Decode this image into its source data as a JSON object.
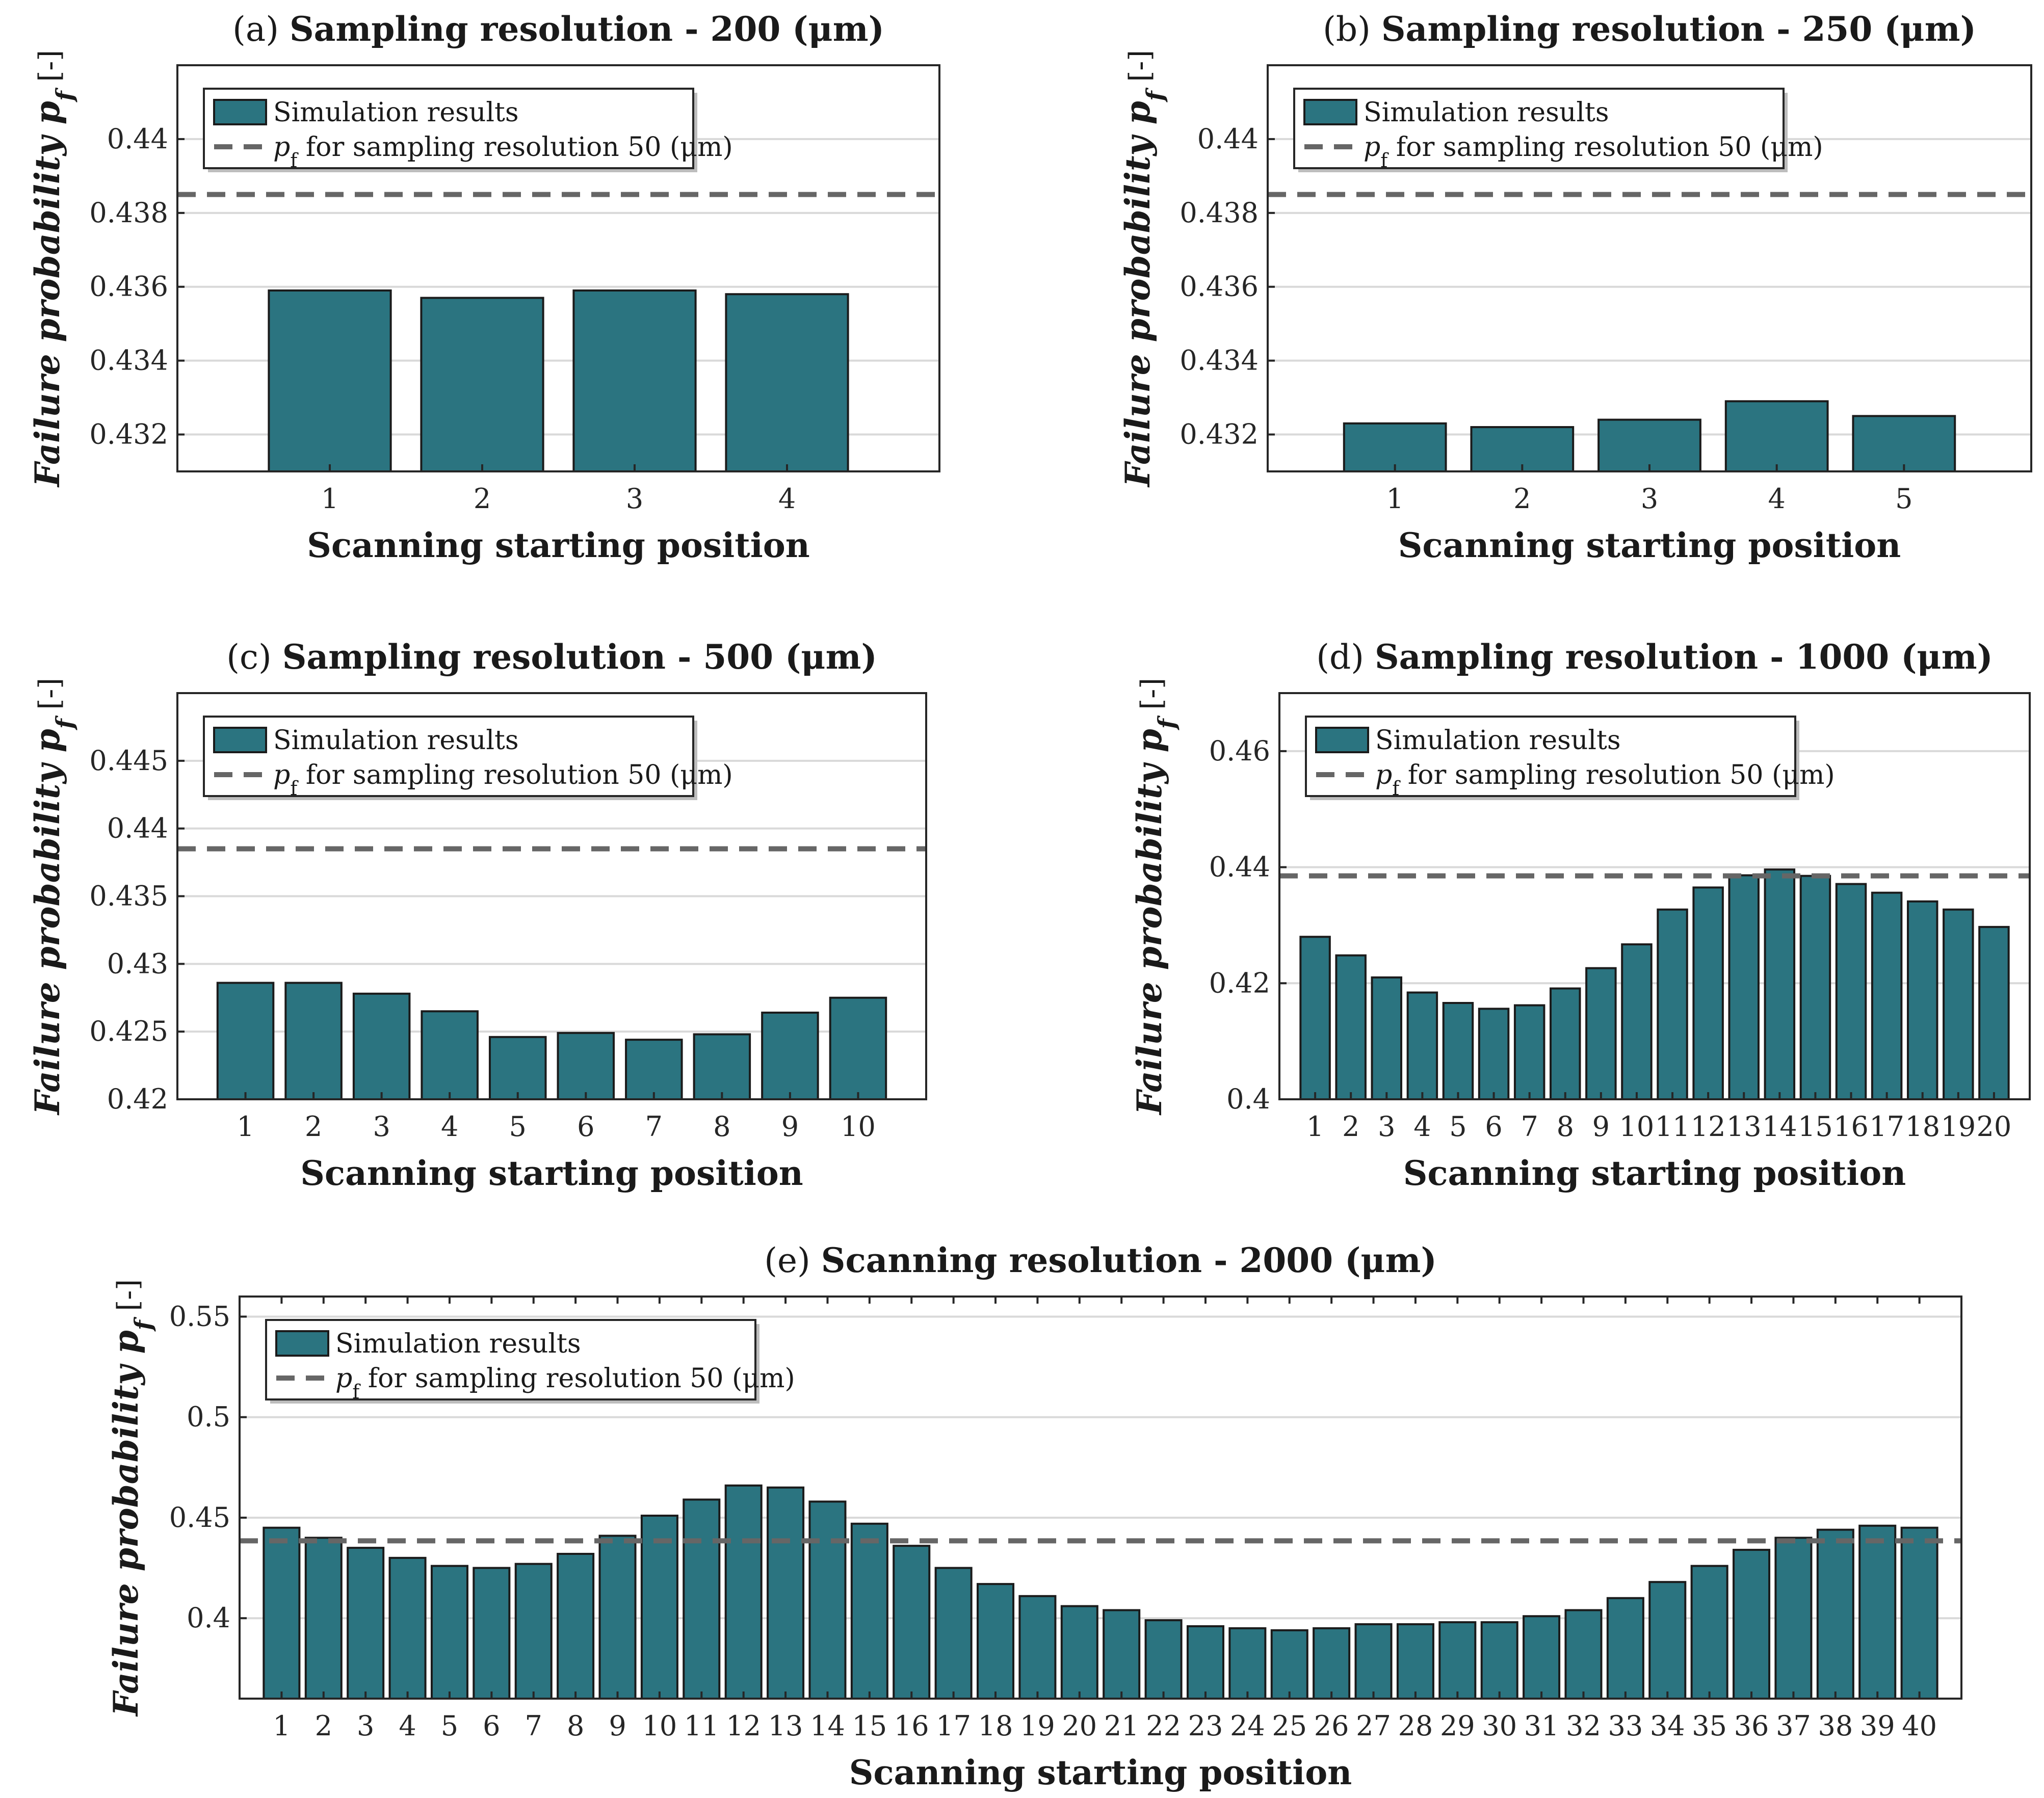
{
  "chart_data": [
    {
      "type": "bar",
      "panel": "a",
      "title_prefix": "(a)",
      "title_bold": "Sampling resolution - 200",
      "title_unit": "(μm)",
      "xlabel": "Scanning starting position",
      "ylabel": "Failure probability p",
      "ylabel_sub": "f",
      "ylabel_unit": "[-]",
      "categories": [
        "1",
        "2",
        "3",
        "4"
      ],
      "series": [
        {
          "name": "Simulation results",
          "values": [
            0.4359,
            0.4357,
            0.4359,
            0.4358
          ]
        }
      ],
      "reference": {
        "name": "p",
        "name_sub": "f",
        "name_rest": "for sampling resolution 50 (μm)",
        "value": 0.4385
      },
      "ylim": [
        0.431,
        0.442
      ],
      "yticks": [
        0.432,
        0.434,
        0.436,
        0.438,
        0.44
      ],
      "ytick_labels": [
        "0.432",
        "0.434",
        "0.436",
        "0.438",
        "0.44"
      ],
      "legend_position": "top-left",
      "grid": true
    },
    {
      "type": "bar",
      "panel": "b",
      "title_prefix": "(b)",
      "title_bold": "Sampling resolution - 250",
      "title_unit": "(μm)",
      "xlabel": "Scanning starting position",
      "ylabel": "Failure probability p",
      "ylabel_sub": "f",
      "ylabel_unit": "[-]",
      "categories": [
        "1",
        "2",
        "3",
        "4",
        "5"
      ],
      "series": [
        {
          "name": "Simulation results",
          "values": [
            0.4323,
            0.4322,
            0.4324,
            0.4329,
            0.4325
          ]
        }
      ],
      "reference": {
        "name": "p",
        "name_sub": "f",
        "name_rest": "for sampling resolution 50 (μm)",
        "value": 0.4385
      },
      "ylim": [
        0.431,
        0.442
      ],
      "yticks": [
        0.432,
        0.434,
        0.436,
        0.438,
        0.44
      ],
      "ytick_labels": [
        "0.432",
        "0.434",
        "0.436",
        "0.438",
        "0.44"
      ],
      "legend_position": "top-left",
      "grid": true
    },
    {
      "type": "bar",
      "panel": "c",
      "title_prefix": "(c)",
      "title_bold": "Sampling resolution - 500",
      "title_unit": "(μm)",
      "xlabel": "Scanning starting position",
      "ylabel": "Failure probability p",
      "ylabel_sub": "f",
      "ylabel_unit": "[-]",
      "categories": [
        "1",
        "2",
        "3",
        "4",
        "5",
        "6",
        "7",
        "8",
        "9",
        "10"
      ],
      "series": [
        {
          "name": "Simulation results",
          "values": [
            0.4286,
            0.4286,
            0.4278,
            0.4265,
            0.4246,
            0.4249,
            0.4244,
            0.4248,
            0.4264,
            0.4275
          ]
        }
      ],
      "reference": {
        "name": "p",
        "name_sub": "f",
        "name_rest": "for sampling resolution 50 (μm)",
        "value": 0.4385
      },
      "ylim": [
        0.42,
        0.45
      ],
      "yticks": [
        0.42,
        0.425,
        0.43,
        0.435,
        0.44,
        0.445
      ],
      "ytick_labels": [
        "0.42",
        "0.425",
        "0.43",
        "0.435",
        "0.44",
        "0.445"
      ],
      "legend_position": "top-left",
      "grid": true
    },
    {
      "type": "bar",
      "panel": "d",
      "title_prefix": "(d)",
      "title_bold": "Sampling resolution - 1000",
      "title_unit": "(μm)",
      "xlabel": "Scanning starting position",
      "ylabel": "Failure probability p",
      "ylabel_sub": "f",
      "ylabel_unit": "[-]",
      "categories": [
        "1",
        "2",
        "3",
        "4",
        "5",
        "6",
        "7",
        "8",
        "9",
        "10",
        "11",
        "12",
        "13",
        "14",
        "15",
        "16",
        "17",
        "18",
        "19",
        "20"
      ],
      "series": [
        {
          "name": "Simulation results",
          "values": [
            0.428,
            0.4248,
            0.421,
            0.4184,
            0.4166,
            0.4156,
            0.4162,
            0.4191,
            0.4226,
            0.4267,
            0.4327,
            0.4365,
            0.4386,
            0.4396,
            0.4385,
            0.4371,
            0.4356,
            0.4341,
            0.4327,
            0.4297
          ]
        }
      ],
      "reference": {
        "name": "p",
        "name_sub": "f",
        "name_rest": "for sampling resolution 50 (μm)",
        "value": 0.4385
      },
      "ylim": [
        0.4,
        0.47
      ],
      "yticks": [
        0.4,
        0.42,
        0.44,
        0.46
      ],
      "ytick_labels": [
        "0.4",
        "0.42",
        "0.44",
        "0.46"
      ],
      "legend_position": "top-left",
      "grid": true
    },
    {
      "type": "bar",
      "panel": "e",
      "title_prefix": "(e)",
      "title_bold": "Scanning resolution - 2000",
      "title_unit": "(μm)",
      "xlabel": "Scanning starting position",
      "ylabel": "Failure probability p",
      "ylabel_sub": "f",
      "ylabel_unit": "[-]",
      "categories": [
        "1",
        "2",
        "3",
        "4",
        "5",
        "6",
        "7",
        "8",
        "9",
        "10",
        "11",
        "12",
        "13",
        "14",
        "15",
        "16",
        "17",
        "18",
        "19",
        "20",
        "21",
        "22",
        "23",
        "24",
        "25",
        "26",
        "27",
        "28",
        "29",
        "30",
        "31",
        "32",
        "33",
        "34",
        "35",
        "36",
        "37",
        "38",
        "39",
        "40"
      ],
      "series": [
        {
          "name": "Simulation results",
          "values": [
            0.445,
            0.44,
            0.435,
            0.43,
            0.426,
            0.425,
            0.427,
            0.432,
            0.441,
            0.451,
            0.459,
            0.466,
            0.465,
            0.458,
            0.447,
            0.436,
            0.425,
            0.417,
            0.411,
            0.406,
            0.404,
            0.399,
            0.396,
            0.395,
            0.394,
            0.395,
            0.397,
            0.397,
            0.398,
            0.398,
            0.401,
            0.404,
            0.41,
            0.418,
            0.426,
            0.434,
            0.44,
            0.444,
            0.446,
            0.445
          ]
        }
      ],
      "reference": {
        "name": "p",
        "name_sub": "f",
        "name_rest": "for sampling resolution 50 (μm)",
        "value": 0.4385
      },
      "ylim": [
        0.36,
        0.56
      ],
      "yticks": [
        0.4,
        0.45,
        0.5,
        0.55
      ],
      "ytick_labels": [
        "0.4",
        "0.45",
        "0.5",
        "0.55"
      ],
      "legend_position": "top-left",
      "grid": true
    }
  ]
}
